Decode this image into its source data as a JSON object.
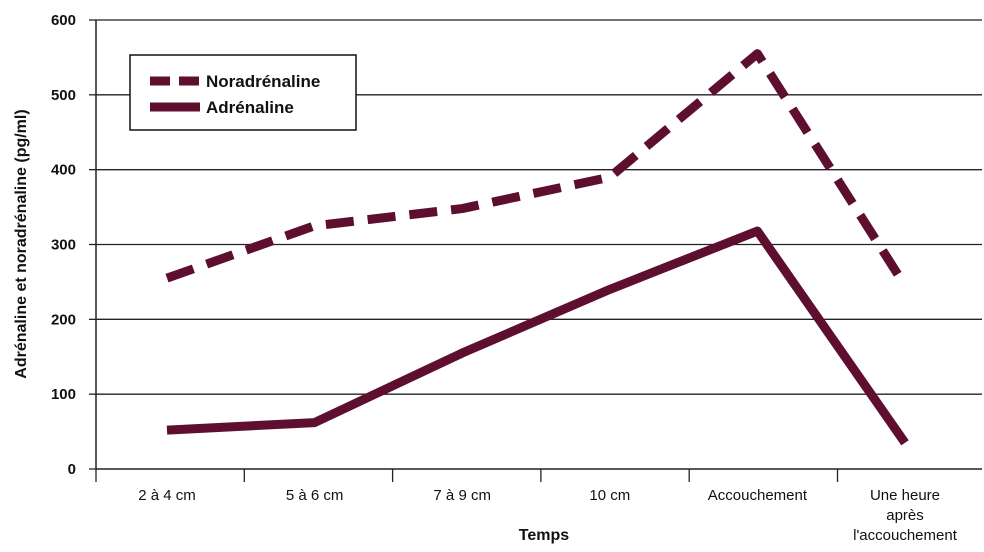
{
  "chart_data": {
    "type": "line",
    "categories": [
      "2 à 4 cm",
      "5 à 6 cm",
      "7 à 9 cm",
      "10 cm",
      "Accouchement",
      "Une heure après l'accouchement"
    ],
    "category_lines": [
      [
        "2 à 4 cm"
      ],
      [
        "5 à 6 cm"
      ],
      [
        "7 à 9 cm"
      ],
      [
        "10 cm"
      ],
      [
        "Accouchement"
      ],
      [
        "Une heure",
        "après",
        "l'accouchement"
      ]
    ],
    "series": [
      {
        "name": "Noradrénaline",
        "style": "dashed",
        "values": [
          255,
          325,
          348,
          390,
          555,
          245
        ]
      },
      {
        "name": "Adrénaline",
        "style": "solid",
        "values": [
          52,
          62,
          155,
          240,
          318,
          35
        ]
      }
    ],
    "xlabel": "Temps",
    "ylabel": "Adrénaline et noradrénaline (pg/ml)",
    "ylim": [
      0,
      600
    ],
    "yticks": [
      0,
      100,
      200,
      300,
      400,
      500,
      600
    ],
    "grid": true,
    "legend_position": "top-left",
    "line_color": "#5e0f2f"
  }
}
